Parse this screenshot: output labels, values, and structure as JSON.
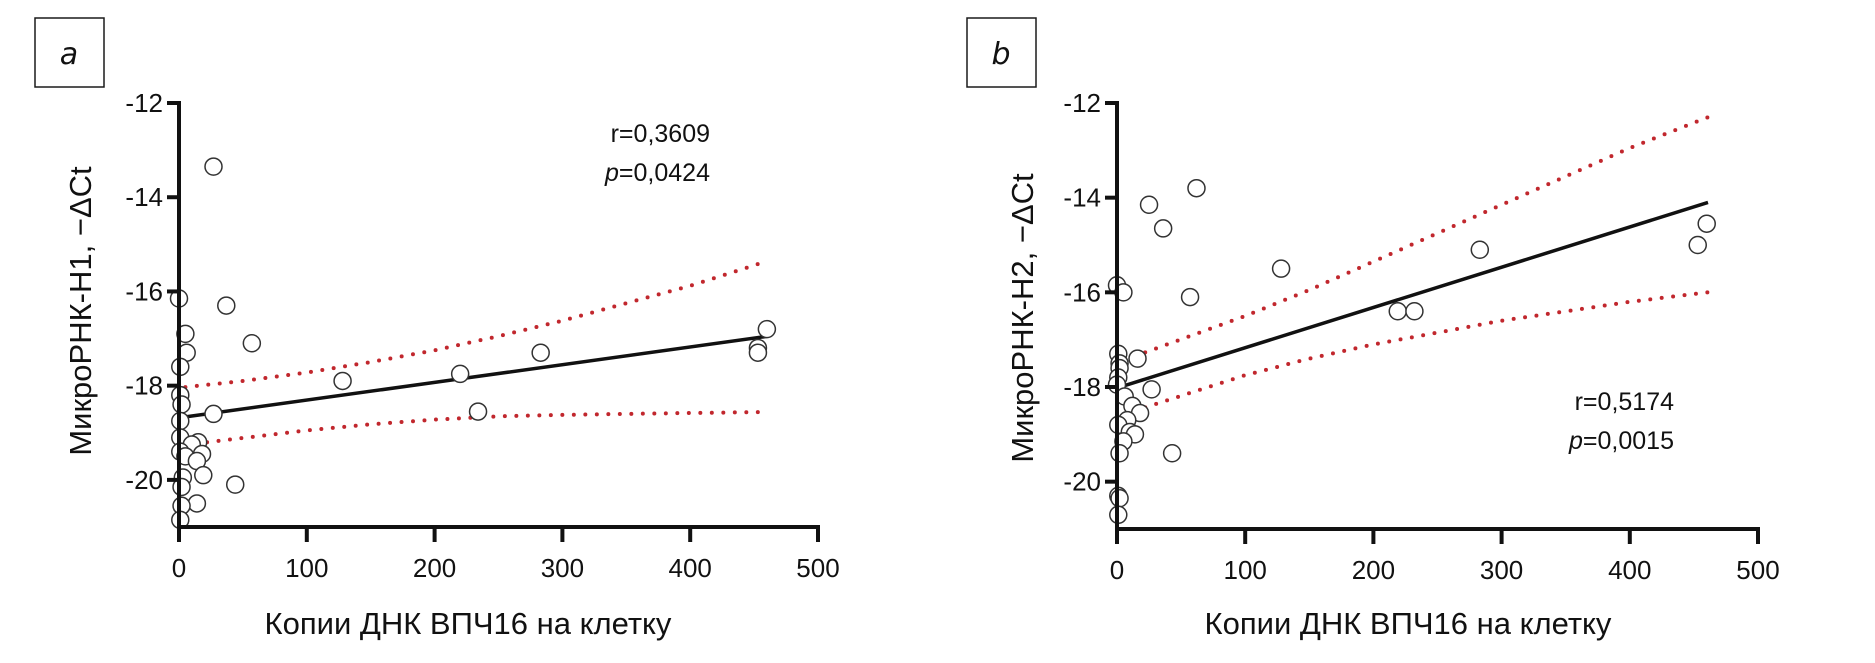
{
  "chart_data": [
    {
      "type": "scatter",
      "panel_label": "a",
      "xlabel": "Копии ДНК ВПЧ16 на клетку",
      "ylabel": "МикроРНК-H1, −ΔCt",
      "xlim": [
        0,
        500
      ],
      "ylim": [
        -21,
        -12
      ],
      "xticks": [
        0,
        100,
        200,
        300,
        400,
        500
      ],
      "yticks": [
        -12,
        -14,
        -16,
        -18,
        -20
      ],
      "xtick_labels": [
        "0",
        "100",
        "200",
        "300",
        "400",
        "500"
      ],
      "ytick_labels": [
        "-12",
        "-14",
        "-16",
        "-18",
        "-20"
      ],
      "grid": false,
      "annotation": {
        "r": "r=0,3609",
        "p_prefix": "p",
        "p_value": "=0,0424",
        "placement": "top-right"
      },
      "regression": {
        "x": [
          3,
          461
        ],
        "y": [
          -18.67,
          -16.95
        ]
      },
      "ci_upper": {
        "x": [
          5,
          50,
          100,
          150,
          200,
          250,
          300,
          350,
          400,
          461
        ],
        "y": [
          -18.03,
          -17.9,
          -17.72,
          -17.5,
          -17.25,
          -16.95,
          -16.62,
          -16.25,
          -15.88,
          -15.35
        ]
      },
      "ci_lower": {
        "x": [
          22,
          60,
          100,
          150,
          200,
          250,
          300,
          350,
          400,
          461
        ],
        "y": [
          -19.2,
          -19.08,
          -18.95,
          -18.82,
          -18.72,
          -18.65,
          -18.62,
          -18.6,
          -18.58,
          -18.56
        ]
      },
      "points": [
        {
          "x": 0,
          "y": -16.15
        },
        {
          "x": 27,
          "y": -13.35
        },
        {
          "x": 37,
          "y": -16.3
        },
        {
          "x": 5,
          "y": -16.9
        },
        {
          "x": 57,
          "y": -17.1
        },
        {
          "x": 6,
          "y": -17.3
        },
        {
          "x": 1,
          "y": -17.6
        },
        {
          "x": 1,
          "y": -18.2
        },
        {
          "x": 2,
          "y": -18.4
        },
        {
          "x": 27,
          "y": -18.6
        },
        {
          "x": 1,
          "y": -18.75
        },
        {
          "x": 1,
          "y": -19.1
        },
        {
          "x": 15,
          "y": -19.2
        },
        {
          "x": 10,
          "y": -19.25
        },
        {
          "x": 1,
          "y": -19.4
        },
        {
          "x": 18,
          "y": -19.45
        },
        {
          "x": 5,
          "y": -19.5
        },
        {
          "x": 14,
          "y": -19.6
        },
        {
          "x": 19,
          "y": -19.9
        },
        {
          "x": 3,
          "y": -19.95
        },
        {
          "x": 44,
          "y": -20.1
        },
        {
          "x": 2,
          "y": -20.15
        },
        {
          "x": 14,
          "y": -20.5
        },
        {
          "x": 2,
          "y": -20.55
        },
        {
          "x": 1,
          "y": -20.85
        },
        {
          "x": 128,
          "y": -17.9
        },
        {
          "x": 220,
          "y": -17.75
        },
        {
          "x": 234,
          "y": -18.55
        },
        {
          "x": 283,
          "y": -17.3
        },
        {
          "x": 453,
          "y": -17.2
        },
        {
          "x": 453,
          "y": -17.3
        },
        {
          "x": 460,
          "y": -16.8
        }
      ]
    },
    {
      "type": "scatter",
      "panel_label": "b",
      "xlabel": "Копии ДНК ВПЧ16 на клетку",
      "ylabel": "МикроРНК-H2, −ΔCt",
      "xlim": [
        0,
        500
      ],
      "ylim": [
        -21,
        -12
      ],
      "xticks": [
        0,
        100,
        200,
        300,
        400,
        500
      ],
      "yticks": [
        -12,
        -14,
        -16,
        -18,
        -20
      ],
      "xtick_labels": [
        "0",
        "100",
        "200",
        "300",
        "400",
        "500"
      ],
      "ytick_labels": [
        "-12",
        "-14",
        "-16",
        "-18",
        "-20"
      ],
      "grid": false,
      "annotation": {
        "r": "r=0,5174",
        "p_prefix": "p",
        "p_value": "=0,0015",
        "placement": "bottom-right"
      },
      "regression": {
        "x": [
          6,
          461
        ],
        "y": [
          -17.97,
          -14.1
        ]
      },
      "ci_upper": {
        "x": [
          22,
          100,
          150,
          200,
          250,
          300,
          350,
          400,
          461
        ],
        "y": [
          -17.27,
          -16.5,
          -15.95,
          -15.35,
          -14.75,
          -14.15,
          -13.55,
          -12.95,
          -12.3
        ]
      },
      "ci_lower": {
        "x": [
          22,
          100,
          150,
          200,
          250,
          300,
          350,
          400,
          461
        ],
        "y": [
          -18.43,
          -17.75,
          -17.4,
          -17.1,
          -16.85,
          -16.6,
          -16.4,
          -16.2,
          -16.0
        ]
      },
      "points": [
        {
          "x": 0,
          "y": -15.85
        },
        {
          "x": 5,
          "y": -16.0
        },
        {
          "x": 57,
          "y": -16.1
        },
        {
          "x": 25,
          "y": -14.15
        },
        {
          "x": 36,
          "y": -14.65
        },
        {
          "x": 62,
          "y": -13.8
        },
        {
          "x": 1,
          "y": -17.3
        },
        {
          "x": 16,
          "y": -17.4
        },
        {
          "x": 2,
          "y": -17.5
        },
        {
          "x": 2,
          "y": -17.6
        },
        {
          "x": 1,
          "y": -17.8
        },
        {
          "x": 0,
          "y": -17.95
        },
        {
          "x": 27,
          "y": -18.05
        },
        {
          "x": 6,
          "y": -18.2
        },
        {
          "x": 12,
          "y": -18.4
        },
        {
          "x": 18,
          "y": -18.55
        },
        {
          "x": 8,
          "y": -18.7
        },
        {
          "x": 1,
          "y": -18.8
        },
        {
          "x": 10,
          "y": -18.95
        },
        {
          "x": 14,
          "y": -19.0
        },
        {
          "x": 5,
          "y": -19.15
        },
        {
          "x": 2,
          "y": -19.4
        },
        {
          "x": 43,
          "y": -19.4
        },
        {
          "x": 1,
          "y": -20.3
        },
        {
          "x": 2,
          "y": -20.35
        },
        {
          "x": 1,
          "y": -20.7
        },
        {
          "x": 128,
          "y": -15.5
        },
        {
          "x": 219,
          "y": -16.4
        },
        {
          "x": 232,
          "y": -16.4
        },
        {
          "x": 283,
          "y": -15.1
        },
        {
          "x": 453,
          "y": -15.0
        },
        {
          "x": 460,
          "y": -14.55
        }
      ]
    }
  ]
}
